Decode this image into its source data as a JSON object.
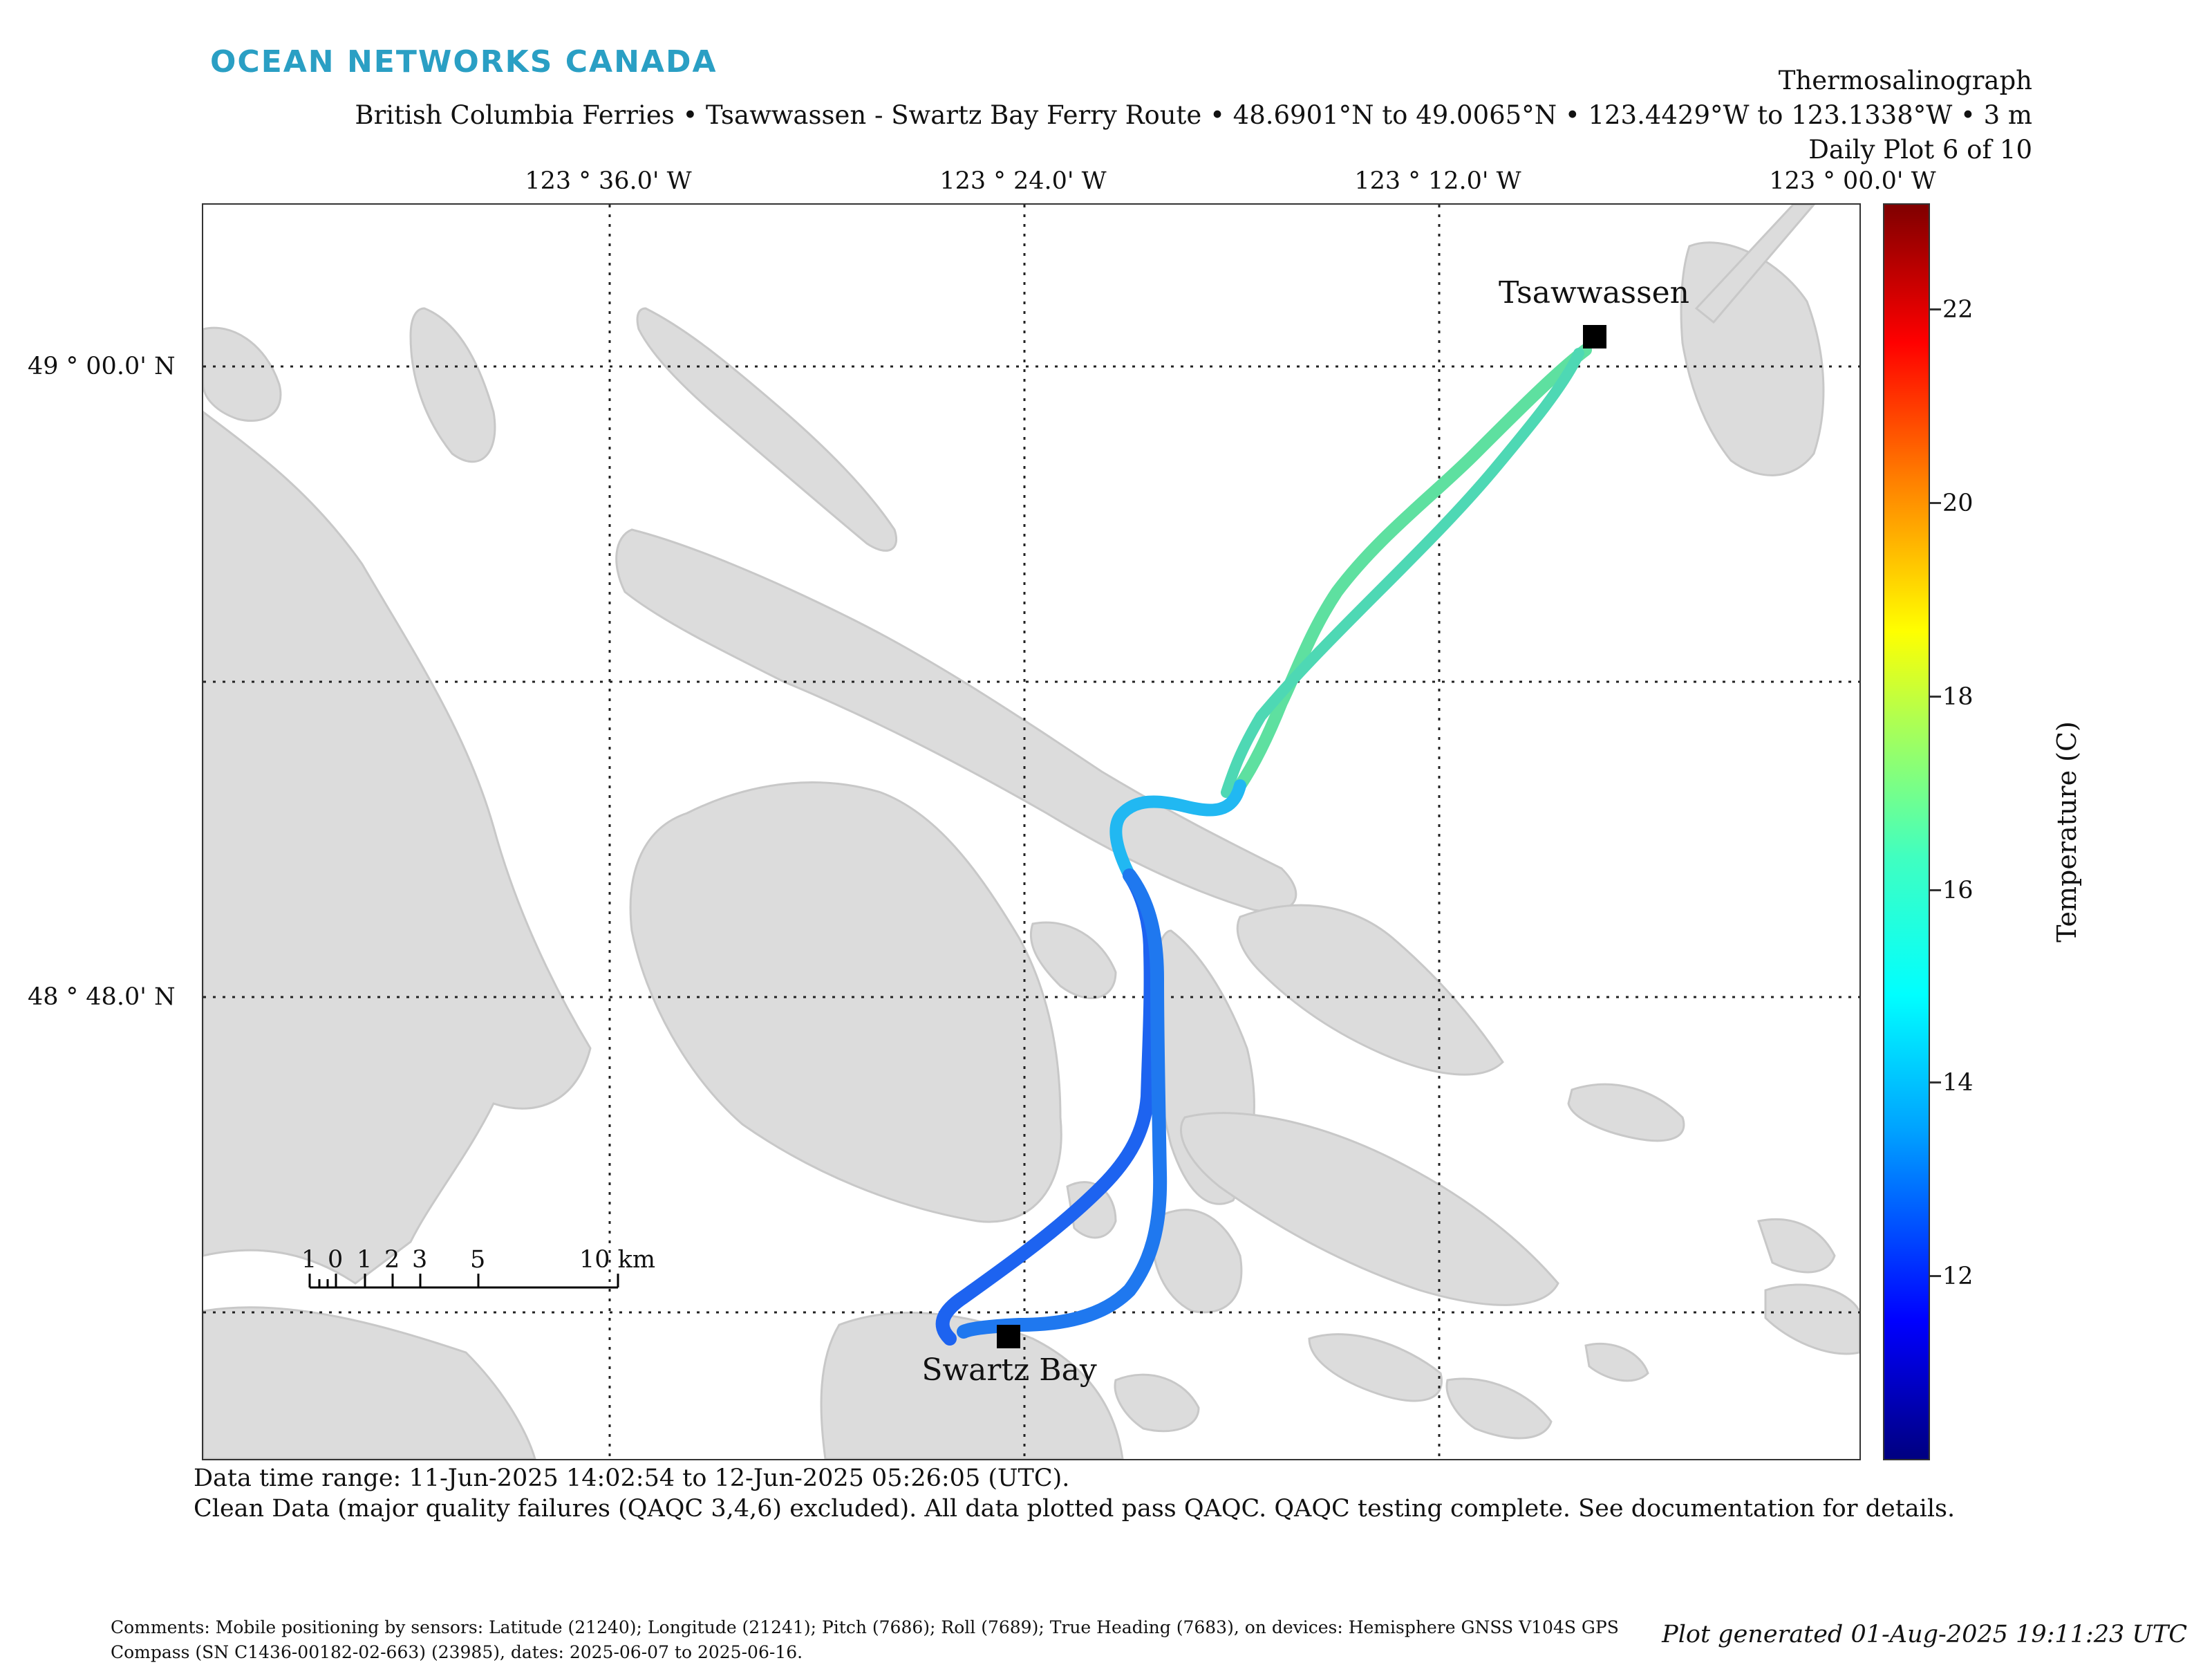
{
  "brand": "OCEAN NETWORKS CANADA",
  "title": {
    "line1": "Thermosalinograph",
    "line2": "British Columbia Ferries • Tsawwassen - Swartz Bay Ferry Route • 48.6901°N to 49.0065°N • 123.4429°W to 123.1338°W • 3 m",
    "line3": "Daily Plot 6 of 10"
  },
  "axes": {
    "lon_ticks": [
      "123 ° 36.0' W",
      "123 ° 24.0' W",
      "123 ° 12.0' W",
      "123 ° 00.0' W"
    ],
    "lat_ticks": [
      "49 ° 00.0' N",
      "48 ° 48.0' N"
    ]
  },
  "sites": {
    "tsawwassen": "Tsawwassen",
    "swartz_bay": "Swartz Bay"
  },
  "scale_bar": {
    "labels": [
      "1",
      "0",
      "1",
      "2",
      "3",
      "5",
      "10 km"
    ]
  },
  "colorbar": {
    "label": "Temperature (C)",
    "ticks": [
      "22",
      "20",
      "18",
      "16",
      "14",
      "12"
    ],
    "range": [
      10.0,
      23.0
    ],
    "colormap": "jet"
  },
  "info": {
    "time_range": "Data time range: 11-Jun-2025 14:02:54 to 12-Jun-2025 05:26:05 (UTC).",
    "qaqc": "Clean Data (major quality failures (QAQC 3,4,6) excluded). All data plotted pass QAQC. QAQC testing complete. See documentation for details."
  },
  "comments": "Comments: Mobile positioning by sensors: Latitude (21240); Longitude (21241); Pitch (7686); Roll (7689); True Heading (7683), on devices: Hemisphere GNSS V104S GPS Compass (SN C1436-00182-02-663) (23985), dates: 2025-06-07 to 2025-06-16.",
  "generated": "Plot generated 01-Aug-2025 19:11:23 UTC",
  "colors": {
    "brand": "#2a9fc4",
    "land": "#dcdcdc",
    "land_edge": "#c8c8c8",
    "track_outbound": "#55e6a0",
    "track_inbound": "#1f6df0"
  }
}
